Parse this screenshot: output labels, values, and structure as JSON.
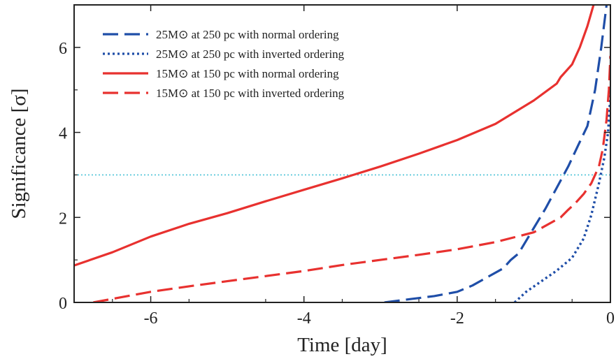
{
  "chart_data": {
    "type": "line",
    "xlabel": "Time [day]",
    "ylabel": "Significance [σ]",
    "xlim": [
      -7,
      0
    ],
    "ylim": [
      0,
      7
    ],
    "xticks": [
      -6,
      -4,
      -2,
      0
    ],
    "yticks": [
      0,
      2,
      4,
      6
    ],
    "grid": false,
    "legend_position": "top-left",
    "reference_line": {
      "y": 3,
      "color": "#4fc3d8",
      "style": "dotted"
    },
    "series": [
      {
        "name": "25M⊙ at 250 pc with normal ordering",
        "color": "#1f4ea8",
        "style": "dashed",
        "x": [
          -2.95,
          -2.6,
          -2.3,
          -2.0,
          -1.8,
          -1.6,
          -1.4,
          -1.3,
          -1.2,
          -1.15,
          -1.0,
          -0.85,
          -0.7,
          -0.55,
          -0.42,
          -0.3,
          -0.2,
          -0.12,
          -0.05
        ],
        "y": [
          0.0,
          0.08,
          0.15,
          0.25,
          0.4,
          0.6,
          0.8,
          1.0,
          1.15,
          1.3,
          1.75,
          2.2,
          2.7,
          3.2,
          3.7,
          4.15,
          5.0,
          6.0,
          7.0
        ]
      },
      {
        "name": "25M⊙ at 250 pc with inverted ordering",
        "color": "#1f4ea8",
        "style": "dotted",
        "x": [
          -1.25,
          -1.1,
          -0.9,
          -0.7,
          -0.5,
          -0.35,
          -0.25,
          -0.15,
          -0.08,
          -0.03,
          0.0
        ],
        "y": [
          0.0,
          0.25,
          0.5,
          0.75,
          1.05,
          1.5,
          2.05,
          2.8,
          3.4,
          4.0,
          4.9
        ]
      },
      {
        "name": "15M⊙ at 150 pc with normal ordering",
        "color": "#e8312f",
        "style": "solid",
        "x": [
          -7.0,
          -6.5,
          -6.0,
          -5.5,
          -5.0,
          -4.5,
          -4.0,
          -3.5,
          -3.0,
          -2.5,
          -2.0,
          -1.5,
          -1.0,
          -0.7,
          -0.65,
          -0.5,
          -0.4,
          -0.3,
          -0.22
        ],
        "y": [
          0.87,
          1.18,
          1.55,
          1.85,
          2.1,
          2.38,
          2.65,
          2.92,
          3.2,
          3.5,
          3.82,
          4.2,
          4.75,
          5.15,
          5.3,
          5.6,
          6.0,
          6.5,
          7.0
        ]
      },
      {
        "name": "15M⊙ at 150 pc with inverted ordering",
        "color": "#e8312f",
        "style": "dashed",
        "x": [
          -6.75,
          -6.0,
          -5.5,
          -5.0,
          -4.5,
          -4.0,
          -3.5,
          -3.0,
          -2.5,
          -2.0,
          -1.5,
          -1.0,
          -0.65,
          -0.55,
          -0.45,
          -0.35,
          -0.25,
          -0.15,
          -0.1,
          -0.05,
          -0.02,
          0.0
        ],
        "y": [
          0.0,
          0.25,
          0.38,
          0.5,
          0.62,
          0.74,
          0.88,
          1.0,
          1.12,
          1.25,
          1.42,
          1.65,
          2.0,
          2.18,
          2.35,
          2.55,
          2.8,
          3.2,
          3.6,
          4.3,
          5.0,
          5.8
        ]
      }
    ]
  }
}
